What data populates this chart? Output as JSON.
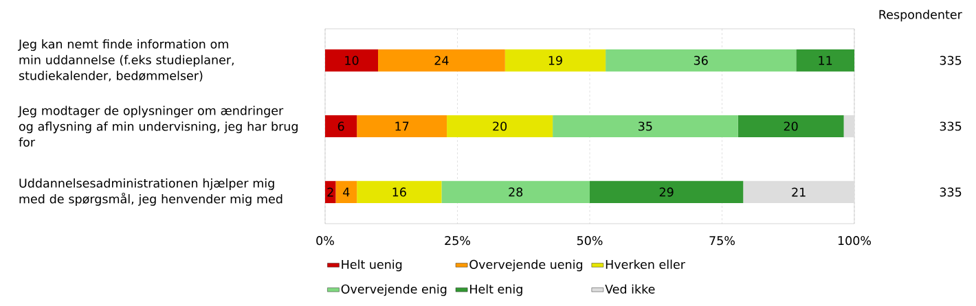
{
  "chart_data": {
    "type": "bar",
    "orientation": "horizontal",
    "stacked": true,
    "categories": [
      "Jeg kan nemt finde information om min uddannelse (f.eks studieplaner, studiekalender, bedømmelser)",
      "Jeg modtager de oplysninger om ændringer og aflysning af min undervisning, jeg har brug for",
      "Uddannelsesadministrationen hjælper mig med de spørgsmål, jeg henvender mig med"
    ],
    "series": [
      {
        "name": "Helt uenig",
        "color": "#cc0000",
        "values": [
          10,
          6,
          2
        ],
        "value_labels": [
          "10",
          "6",
          "2"
        ]
      },
      {
        "name": "Overvejende uenig",
        "color": "#ff9900",
        "values": [
          24,
          17,
          4
        ],
        "value_labels": [
          "24",
          "17",
          "4"
        ]
      },
      {
        "name": "Hverken eller",
        "color": "#e6e600",
        "values": [
          19,
          20,
          16
        ],
        "value_labels": [
          "19",
          "20",
          "16"
        ]
      },
      {
        "name": "Overvejende enig",
        "color": "#80d980",
        "values": [
          36,
          35,
          28
        ],
        "value_labels": [
          "36",
          "35",
          "28"
        ]
      },
      {
        "name": "Helt enig",
        "color": "#339933",
        "values": [
          11,
          20,
          29
        ],
        "value_labels": [
          "11",
          "20",
          "29"
        ]
      },
      {
        "name": "Ved ikke",
        "color": "#dddddd",
        "values": [
          null,
          2,
          21
        ],
        "value_labels": [
          null,
          null,
          "21"
        ]
      }
    ],
    "xlim": [
      0,
      100
    ],
    "xticks": [
      {
        "value": 0,
        "label": "0%"
      },
      {
        "value": 25,
        "label": "25%"
      },
      {
        "value": 50,
        "label": "50%"
      },
      {
        "value": 75,
        "label": "75%"
      },
      {
        "value": 100,
        "label": "100%"
      }
    ],
    "grid": "x",
    "legend": "bottom",
    "annotations": [
      "Respondenter",
      "335",
      "335",
      "335"
    ]
  }
}
